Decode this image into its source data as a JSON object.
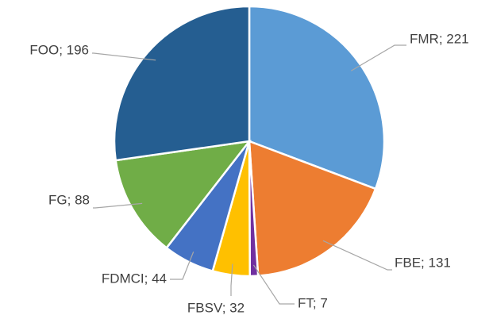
{
  "chart_data": {
    "type": "pie",
    "values": [
      221,
      131,
      7,
      32,
      44,
      88,
      196
    ],
    "value_labels": [
      "FMR; 221",
      "FBE; 131",
      "FT; 7",
      "FBSV; 32",
      "FDMCI; 44",
      "FG; 88",
      "FOO; 196"
    ],
    "colors": [
      "#5b9bd5",
      "#ed7d31",
      "#7030a0",
      "#ffc000",
      "#4472c4",
      "#70ad47",
      "#255e91"
    ]
  }
}
